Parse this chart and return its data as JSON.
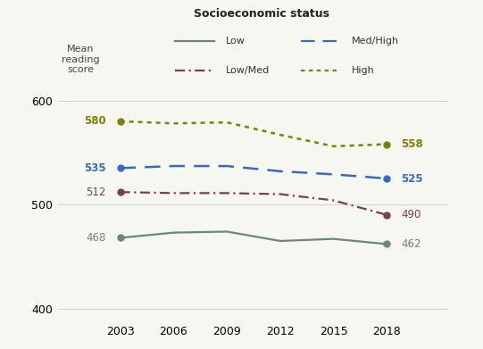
{
  "title": "Socioeconomic status",
  "ylabel": "Mean\nreading\nscore",
  "years": [
    2003,
    2006,
    2009,
    2012,
    2015,
    2018
  ],
  "series_order": [
    "Low",
    "Low/Med",
    "Med/High",
    "High"
  ],
  "series": {
    "Low": {
      "values": [
        468,
        473,
        474,
        465,
        467,
        462
      ],
      "color": "#6d8870",
      "linewidth": 1.6,
      "label_start": "468",
      "label_end": "462",
      "start_bold": false,
      "end_bold": false,
      "dashes": [],
      "marker_only_ends": true
    },
    "Low/Med": {
      "values": [
        512,
        511,
        511,
        510,
        504,
        490
      ],
      "color": "#7b3f50",
      "linewidth": 1.6,
      "label_start": "512",
      "label_end": "490",
      "start_bold": false,
      "end_bold": false,
      "dashes": [
        5,
        2,
        1,
        2
      ],
      "marker_only_ends": true
    },
    "Med/High": {
      "values": [
        535,
        537,
        537,
        532,
        529,
        525
      ],
      "color": "#3a6abf",
      "linewidth": 1.8,
      "label_start": "535",
      "label_end": "525",
      "start_bold": true,
      "end_bold": true,
      "dashes": [
        7,
        4
      ],
      "marker_only_ends": true
    },
    "High": {
      "values": [
        580,
        578,
        579,
        567,
        556,
        558
      ],
      "color": "#808000",
      "linewidth": 1.8,
      "label_start": "580",
      "label_end": "558",
      "start_bold": true,
      "end_bold": true,
      "dashes": [
        2,
        2
      ],
      "marker_only_ends": true
    }
  },
  "ylim": [
    388,
    618
  ],
  "yticks": [
    400,
    500,
    600
  ],
  "xticks": [
    2003,
    2006,
    2009,
    2012,
    2015,
    2018
  ],
  "background_color": "#f7f7f2",
  "grid_color": "#d0d0d0",
  "xlim": [
    1999.5,
    2021.5
  ],
  "legend_items": [
    {
      "label": "Low",
      "color": "#6d8870",
      "dashes": [],
      "col": 0
    },
    {
      "label": "Med/High",
      "color": "#3a6abf",
      "dashes": [
        7,
        4
      ],
      "col": 1
    },
    {
      "label": "Low/Med",
      "color": "#7b3f50",
      "dashes": [
        5,
        2,
        1,
        2
      ],
      "col": 0
    },
    {
      "label": "High",
      "color": "#808000",
      "dashes": [
        2,
        2
      ],
      "col": 1
    }
  ]
}
